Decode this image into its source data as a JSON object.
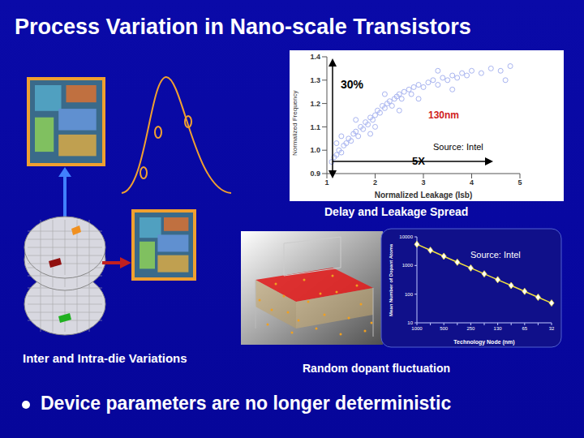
{
  "title": "Process Variation in Nano-scale Transistors",
  "captions": {
    "variations": "Inter and Intra-die Variations",
    "dopant": "Random dopant fluctuation"
  },
  "bullet": "Device parameters are no longer deterministic",
  "chart_data": [
    {
      "type": "scatter",
      "title": "Delay and Leakage Spread",
      "x_label": "Normalized Leakage (Isb)",
      "y_label": "Normalized Frequency",
      "x": [
        1.1,
        1.15,
        1.2,
        1.25,
        1.3,
        1.35,
        1.4,
        1.45,
        1.5,
        1.55,
        1.6,
        1.65,
        1.7,
        1.75,
        1.8,
        1.85,
        1.9,
        1.95,
        2.0,
        2.05,
        2.1,
        2.15,
        2.2,
        2.25,
        2.3,
        2.35,
        2.4,
        2.45,
        2.5,
        2.55,
        2.6,
        2.7,
        2.75,
        2.8,
        2.9,
        3.0,
        3.1,
        3.2,
        3.3,
        3.4,
        3.5,
        3.6,
        3.7,
        3.8,
        3.9,
        4.0,
        4.2,
        4.4,
        4.6,
        4.8,
        1.3,
        1.6,
        1.9,
        2.2,
        2.5,
        2.9,
        3.3,
        1.2,
        2.0,
        4.7,
        3.6
      ],
      "values": [
        0.95,
        0.97,
        0.98,
        1.0,
        0.99,
        1.02,
        1.03,
        1.05,
        1.04,
        1.07,
        1.08,
        1.06,
        1.1,
        1.09,
        1.12,
        1.11,
        1.14,
        1.13,
        1.15,
        1.17,
        1.16,
        1.19,
        1.18,
        1.2,
        1.21,
        1.19,
        1.22,
        1.23,
        1.24,
        1.22,
        1.25,
        1.26,
        1.24,
        1.27,
        1.28,
        1.27,
        1.29,
        1.3,
        1.28,
        1.31,
        1.3,
        1.32,
        1.31,
        1.33,
        1.32,
        1.34,
        1.33,
        1.35,
        1.34,
        1.36,
        1.06,
        1.13,
        1.07,
        1.24,
        1.17,
        1.22,
        1.34,
        1.03,
        1.1,
        1.3,
        1.26
      ],
      "color": "#a8b4f0",
      "marker": "circle",
      "xlim": [
        1,
        5
      ],
      "xticks": [
        1,
        2,
        3,
        4,
        5
      ],
      "ylim": [
        0.9,
        1.4
      ],
      "yticks": [
        0.9,
        {
          "value": 1,
          "label": "1.0"
        },
        1.1,
        1.2,
        1.3,
        1.4
      ],
      "annotations": [
        "30%",
        "130nm",
        "5X",
        "Source: Intel"
      ]
    },
    {
      "type": "line",
      "x_label": "Technology Node (nm)",
      "y_label": "Mean Number of Dopant Atoms",
      "categories": [
        "1000",
        null,
        "500",
        null,
        "250",
        null,
        "130",
        null,
        "65",
        null,
        "32"
      ],
      "values": [
        5500,
        3400,
        2100,
        1300,
        820,
        510,
        320,
        200,
        125,
        78,
        49
      ],
      "color": "#f0e040",
      "marker": "diamond",
      "log": "y",
      "ylim": [
        10,
        10000
      ],
      "yticks": [
        10,
        100,
        1000,
        10000
      ],
      "annotations": [
        "Source: Intel"
      ]
    }
  ]
}
